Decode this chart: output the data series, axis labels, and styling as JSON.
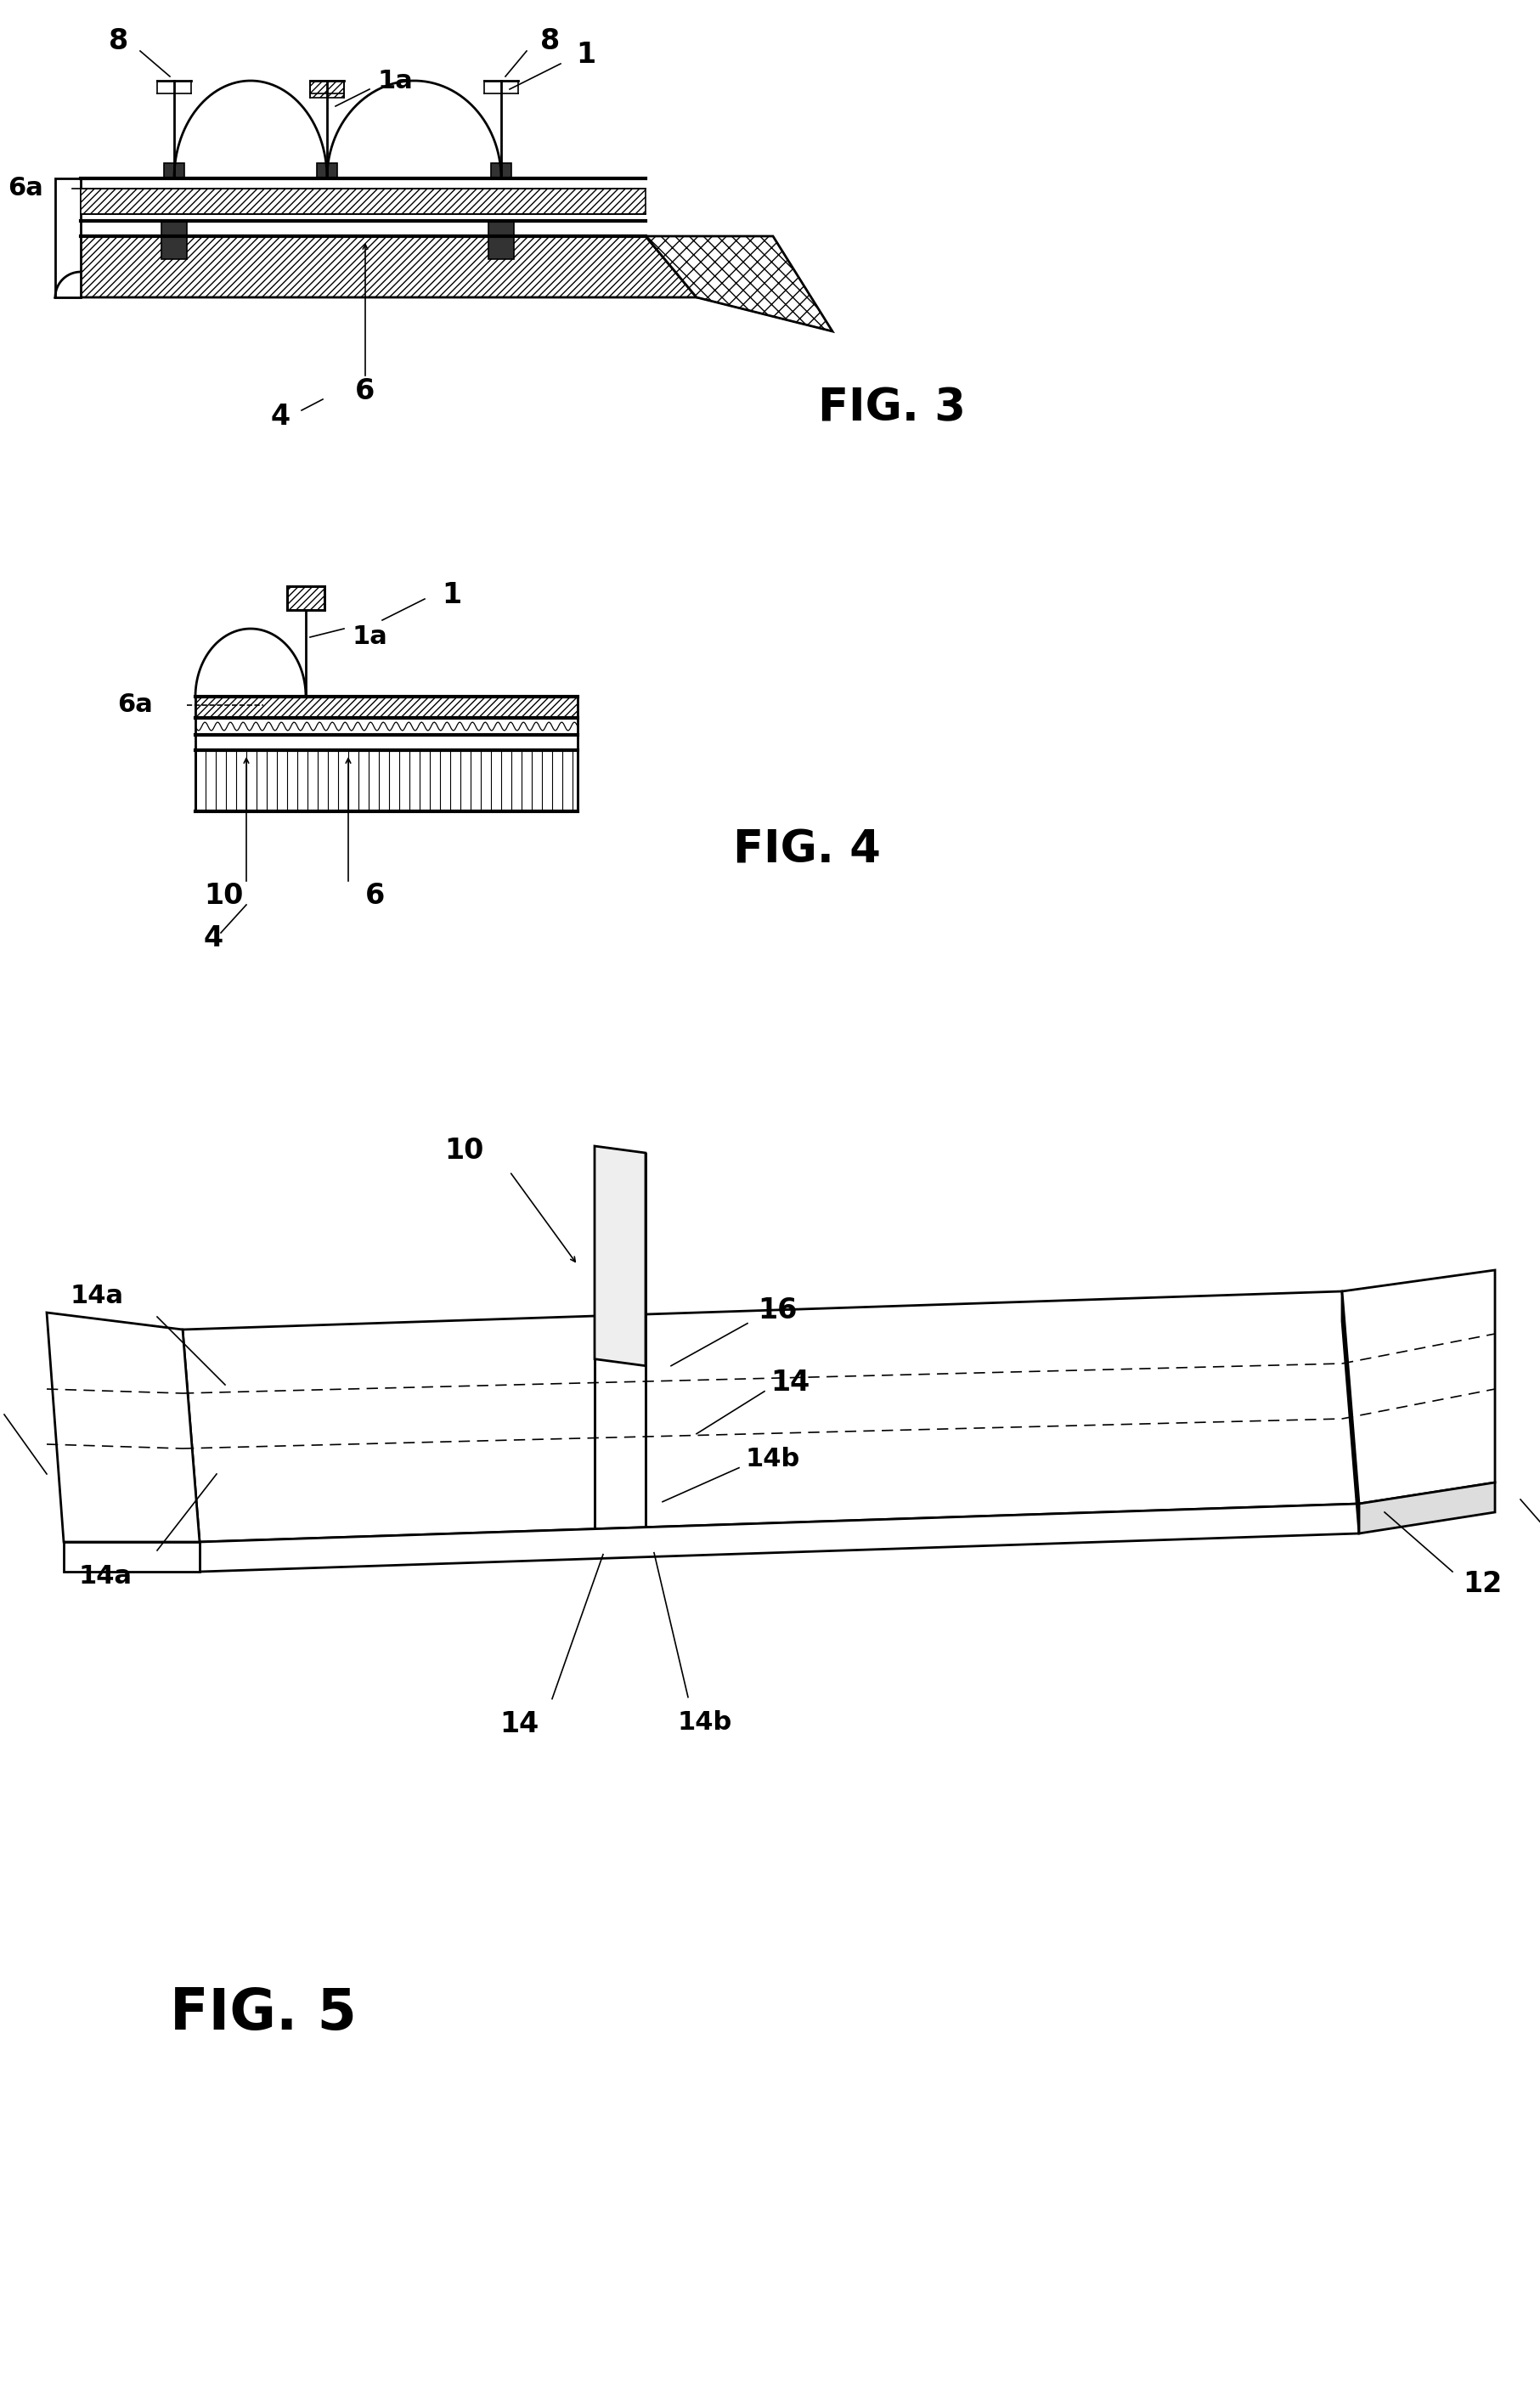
{
  "background_color": "#ffffff",
  "line_color": "#000000",
  "fig3_label": "FIG. 3",
  "fig4_label": "FIG. 4",
  "fig5_label": "FIG. 5"
}
